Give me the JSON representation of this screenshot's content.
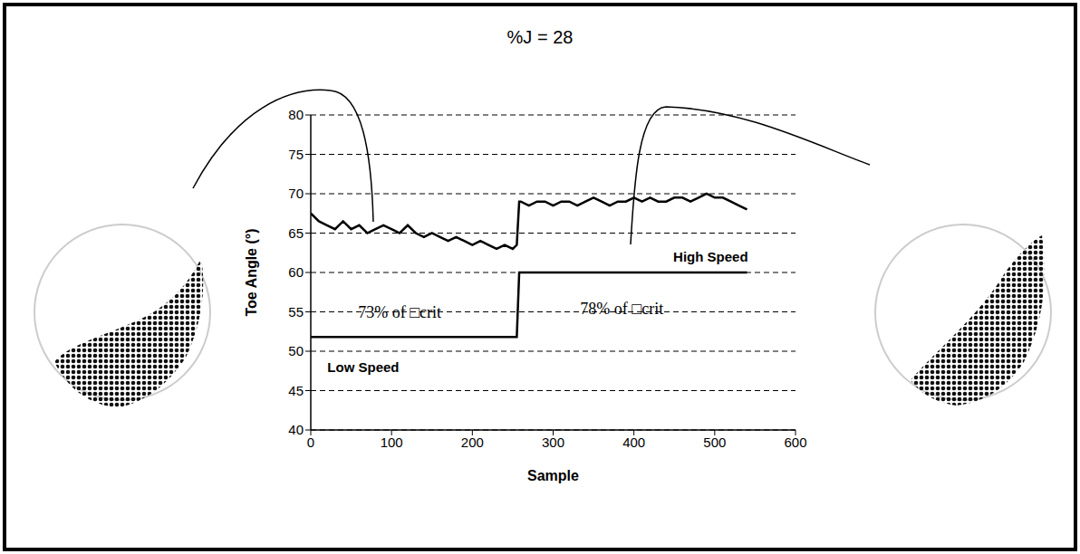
{
  "chart_data": {
    "type": "line",
    "title": "%J = 28",
    "x_label": "Sample",
    "y_label": "Toe Angle (°)",
    "x": [
      0,
      10,
      20,
      30,
      40,
      50,
      60,
      70,
      80,
      90,
      100,
      110,
      120,
      130,
      140,
      150,
      160,
      170,
      180,
      190,
      200,
      210,
      220,
      230,
      240,
      250,
      255,
      258,
      260,
      270,
      280,
      290,
      300,
      310,
      320,
      330,
      340,
      350,
      360,
      370,
      380,
      390,
      400,
      410,
      420,
      430,
      440,
      450,
      460,
      470,
      480,
      490,
      500,
      510,
      520,
      530,
      540
    ],
    "series": [
      {
        "color": "#000000",
        "values": [
          67.5,
          66.5,
          66,
          65.5,
          66.5,
          65.5,
          66,
          65,
          65.5,
          66,
          65.5,
          65,
          66,
          65,
          64.5,
          65,
          64.5,
          64,
          64.5,
          64,
          63.5,
          64,
          63.5,
          63,
          63.5,
          63,
          63.5,
          69,
          69,
          68.5,
          69,
          69,
          68.5,
          69,
          69,
          68.5,
          69,
          69.5,
          69,
          68.5,
          69,
          69,
          69.5,
          69,
          69.5,
          69,
          69,
          69.5,
          69.5,
          69,
          69.5,
          70,
          69.5,
          69.5,
          69,
          68.5,
          68
        ]
      },
      {
        "color": "#000000",
        "values": [
          51.8,
          51.8,
          51.8,
          51.8,
          51.8,
          51.8,
          51.8,
          51.8,
          51.8,
          51.8,
          51.8,
          51.8,
          51.8,
          51.8,
          51.8,
          51.8,
          51.8,
          51.8,
          51.8,
          51.8,
          51.8,
          51.8,
          51.8,
          51.8,
          51.8,
          51.8,
          51.8,
          60,
          60,
          60,
          60,
          60,
          60,
          60,
          60,
          60,
          60,
          60,
          60,
          60,
          60,
          60,
          60,
          60,
          60,
          60,
          60,
          60,
          60,
          60,
          60,
          60,
          60,
          60,
          60,
          60,
          60
        ]
      }
    ],
    "xlim": [
      0,
      600
    ],
    "xticks": [
      0,
      100,
      200,
      300,
      400,
      500,
      600
    ],
    "ylim": [
      40,
      80
    ],
    "yticks": [
      40,
      45,
      50,
      55,
      60,
      65,
      70,
      75,
      80
    ],
    "grid": true,
    "annotations": [
      {
        "text": "73% of □crit",
        "x": 110,
        "y": 55
      },
      {
        "text": "78% of □crit",
        "x": 385,
        "y": 55.5
      },
      {
        "text": "Low Speed",
        "x": 65,
        "y": 48
      },
      {
        "text": "High Speed",
        "x": 495,
        "y": 62
      }
    ]
  }
}
